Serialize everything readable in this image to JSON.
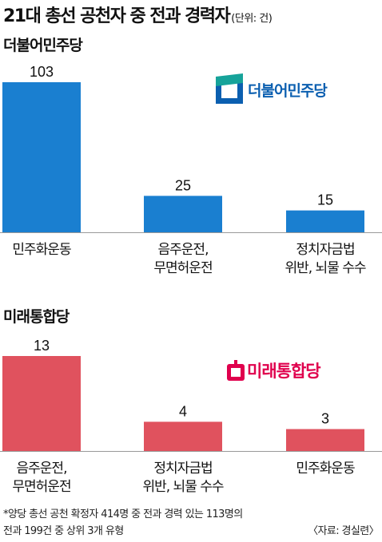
{
  "title": "21대 총선 공천자 중 전과 경력자",
  "unit": "(단위: 건)",
  "colors": {
    "democratic": "#1a7fd0",
    "ufp": "#e0525e"
  },
  "sections": [
    {
      "party": "더불어민주당",
      "logo_text": "더불어민주당"
    },
    {
      "party": "미래통합당",
      "logo_text": "미래통합당"
    }
  ],
  "chart_data": [
    {
      "type": "bar",
      "title": "더불어민주당",
      "categories": [
        "민주화운동",
        "음주운전,\n무면허운전",
        "정치자금법\n위반, 뇌물 수수"
      ],
      "values": [
        103,
        25,
        15
      ],
      "ylim": [
        0,
        103
      ]
    },
    {
      "type": "bar",
      "title": "미래통합당",
      "categories": [
        "음주운전,\n무면허운전",
        "정치자금법\n위반, 뇌물 수수",
        "민주화운동"
      ],
      "values": [
        13,
        4,
        3
      ],
      "ylim": [
        0,
        13
      ]
    }
  ],
  "footnote": {
    "line1": "*양당 총선 공천 확정자 414명 중 전과 경력 있는 113명의",
    "line2": "전과 199건 중 상위 3개 유형",
    "source": "〈자료: 경실련〉"
  }
}
